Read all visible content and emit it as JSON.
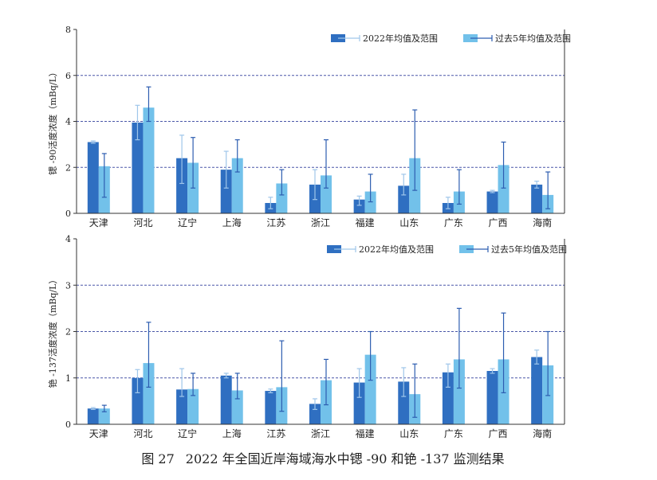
{
  "caption": {
    "figure_number": "图 27",
    "title": "2022 年全国近岸海域海水中锶 -90 和铯 -137 监测结果"
  },
  "colors": {
    "current": "#2f6fc1",
    "history": "#72c1ea",
    "error": "#2d5db0",
    "grid": "#4a57a8",
    "axis": "#333333"
  },
  "chart_data": [
    {
      "type": "bar",
      "ylabel": "锶 -90活度浓度（mBq/L）",
      "ylim": [
        0,
        8
      ],
      "yticks": [
        0,
        2,
        4,
        6,
        8
      ],
      "grid_lines": [
        2,
        4,
        6
      ],
      "legend_position": "top-right",
      "categories": [
        "天津",
        "河北",
        "辽宁",
        "上海",
        "江苏",
        "浙江",
        "福建",
        "山东",
        "广东",
        "广西",
        "海南"
      ],
      "series": [
        {
          "name": "2022年均值及范围",
          "values": [
            3.1,
            3.95,
            2.4,
            1.9,
            0.45,
            1.25,
            0.6,
            1.2,
            0.45,
            0.95,
            1.25
          ],
          "low": [
            3.05,
            3.2,
            1.3,
            1.1,
            0.2,
            0.6,
            0.35,
            0.8,
            0.2,
            0.9,
            1.1
          ],
          "high": [
            3.15,
            4.7,
            3.4,
            2.7,
            0.7,
            1.9,
            0.75,
            1.7,
            0.7,
            1.0,
            1.4
          ]
        },
        {
          "name": "过去5年均值及范围",
          "values": [
            2.05,
            4.6,
            2.2,
            2.4,
            1.3,
            1.65,
            0.95,
            2.4,
            0.95,
            2.1,
            0.8
          ],
          "low": [
            0.7,
            4.0,
            1.1,
            1.8,
            0.8,
            1.1,
            0.5,
            1.0,
            0.4,
            1.1,
            0.2
          ],
          "high": [
            2.6,
            5.5,
            3.3,
            3.2,
            1.9,
            3.2,
            1.7,
            4.5,
            1.9,
            3.1,
            1.8
          ]
        }
      ]
    },
    {
      "type": "bar",
      "ylabel": "铯 -137活度浓度（mBq/L）",
      "ylim": [
        0,
        4
      ],
      "yticks": [
        0,
        1,
        2,
        3,
        4
      ],
      "grid_lines": [
        1,
        2,
        3
      ],
      "legend_position": "top-right",
      "categories": [
        "天津",
        "河北",
        "辽宁",
        "上海",
        "江苏",
        "浙江",
        "福建",
        "山东",
        "广东",
        "广西",
        "海南"
      ],
      "series": [
        {
          "name": "2022年均值及范围",
          "values": [
            0.34,
            1.0,
            0.75,
            1.05,
            0.72,
            0.44,
            0.9,
            0.92,
            1.12,
            1.15,
            1.45
          ],
          "low": [
            0.32,
            0.68,
            0.6,
            1.0,
            0.68,
            0.32,
            0.58,
            0.6,
            0.8,
            1.1,
            1.3
          ],
          "high": [
            0.36,
            1.18,
            1.2,
            1.1,
            0.76,
            0.55,
            1.2,
            1.22,
            1.3,
            1.2,
            1.6
          ]
        },
        {
          "name": "过去5年均值及范围",
          "values": [
            0.34,
            1.32,
            0.76,
            0.73,
            0.8,
            0.95,
            1.5,
            0.65,
            1.4,
            1.4,
            1.27
          ],
          "low": [
            0.27,
            0.8,
            0.62,
            0.55,
            0.28,
            0.42,
            0.95,
            0.15,
            0.78,
            0.68,
            0.62
          ],
          "high": [
            0.41,
            2.2,
            1.1,
            1.1,
            1.8,
            1.4,
            2.0,
            1.3,
            2.5,
            2.4,
            2.0
          ]
        }
      ]
    }
  ]
}
